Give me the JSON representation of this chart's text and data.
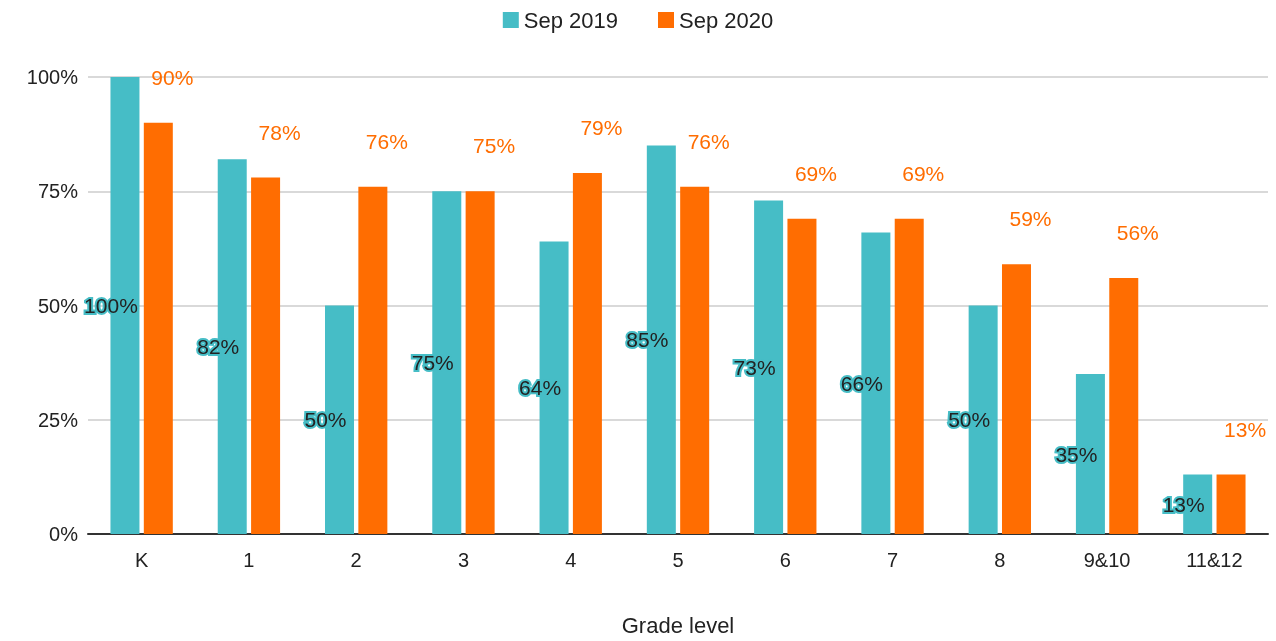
{
  "chart_data": {
    "type": "bar",
    "xlabel": "Grade level",
    "categories": [
      "K",
      "1",
      "2",
      "3",
      "4",
      "5",
      "6",
      "7",
      "8",
      "9&10",
      "11&12"
    ],
    "series": [
      {
        "name": "Sep 2019",
        "color": "#46bdc6",
        "values": [
          100,
          82,
          50,
          75,
          64,
          85,
          73,
          66,
          50,
          35,
          13
        ],
        "value_labels": [
          "100%",
          "82%",
          "50%",
          "75%",
          "64%",
          "85%",
          "73%",
          "66%",
          "50%",
          "35%",
          "13%"
        ]
      },
      {
        "name": "Sep 2020",
        "color": "#ff6d01",
        "values": [
          90,
          78,
          76,
          75,
          79,
          76,
          69,
          69,
          59,
          56,
          13
        ],
        "value_labels": [
          "90%",
          "78%",
          "76%",
          "75%",
          "79%",
          "76%",
          "69%",
          "69%",
          "59%",
          "56%",
          "13%"
        ]
      }
    ],
    "ylim": [
      0,
      100
    ],
    "yticks": [
      {
        "value": 0,
        "label": "0%"
      },
      {
        "value": 25,
        "label": "25%"
      },
      {
        "value": 50,
        "label": "50%"
      },
      {
        "value": 75,
        "label": "75%"
      },
      {
        "value": 100,
        "label": "100%"
      }
    ],
    "grid": "y",
    "legend": "top"
  }
}
